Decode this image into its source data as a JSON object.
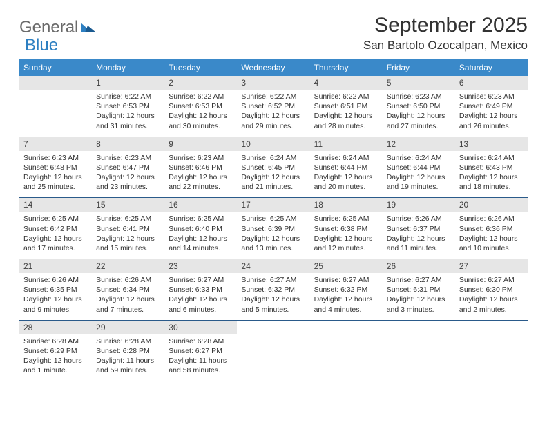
{
  "logo": {
    "part1": "General",
    "part2": "Blue"
  },
  "title": "September 2025",
  "location": "San Bartolo Ozocalpan, Mexico",
  "colors": {
    "header_bg": "#3a89c9",
    "header_text": "#ffffff",
    "daynum_bg": "#e6e6e6",
    "border": "#2a5a8a",
    "logo_gray": "#6a6a6a",
    "logo_blue": "#2d7fc1"
  },
  "weekdays": [
    "Sunday",
    "Monday",
    "Tuesday",
    "Wednesday",
    "Thursday",
    "Friday",
    "Saturday"
  ],
  "weeks": [
    [
      null,
      {
        "n": "1",
        "sr": "6:22 AM",
        "ss": "6:53 PM",
        "dl": "12 hours and 31 minutes."
      },
      {
        "n": "2",
        "sr": "6:22 AM",
        "ss": "6:53 PM",
        "dl": "12 hours and 30 minutes."
      },
      {
        "n": "3",
        "sr": "6:22 AM",
        "ss": "6:52 PM",
        "dl": "12 hours and 29 minutes."
      },
      {
        "n": "4",
        "sr": "6:22 AM",
        "ss": "6:51 PM",
        "dl": "12 hours and 28 minutes."
      },
      {
        "n": "5",
        "sr": "6:23 AM",
        "ss": "6:50 PM",
        "dl": "12 hours and 27 minutes."
      },
      {
        "n": "6",
        "sr": "6:23 AM",
        "ss": "6:49 PM",
        "dl": "12 hours and 26 minutes."
      }
    ],
    [
      {
        "n": "7",
        "sr": "6:23 AM",
        "ss": "6:48 PM",
        "dl": "12 hours and 25 minutes."
      },
      {
        "n": "8",
        "sr": "6:23 AM",
        "ss": "6:47 PM",
        "dl": "12 hours and 23 minutes."
      },
      {
        "n": "9",
        "sr": "6:23 AM",
        "ss": "6:46 PM",
        "dl": "12 hours and 22 minutes."
      },
      {
        "n": "10",
        "sr": "6:24 AM",
        "ss": "6:45 PM",
        "dl": "12 hours and 21 minutes."
      },
      {
        "n": "11",
        "sr": "6:24 AM",
        "ss": "6:44 PM",
        "dl": "12 hours and 20 minutes."
      },
      {
        "n": "12",
        "sr": "6:24 AM",
        "ss": "6:44 PM",
        "dl": "12 hours and 19 minutes."
      },
      {
        "n": "13",
        "sr": "6:24 AM",
        "ss": "6:43 PM",
        "dl": "12 hours and 18 minutes."
      }
    ],
    [
      {
        "n": "14",
        "sr": "6:25 AM",
        "ss": "6:42 PM",
        "dl": "12 hours and 17 minutes."
      },
      {
        "n": "15",
        "sr": "6:25 AM",
        "ss": "6:41 PM",
        "dl": "12 hours and 15 minutes."
      },
      {
        "n": "16",
        "sr": "6:25 AM",
        "ss": "6:40 PM",
        "dl": "12 hours and 14 minutes."
      },
      {
        "n": "17",
        "sr": "6:25 AM",
        "ss": "6:39 PM",
        "dl": "12 hours and 13 minutes."
      },
      {
        "n": "18",
        "sr": "6:25 AM",
        "ss": "6:38 PM",
        "dl": "12 hours and 12 minutes."
      },
      {
        "n": "19",
        "sr": "6:26 AM",
        "ss": "6:37 PM",
        "dl": "12 hours and 11 minutes."
      },
      {
        "n": "20",
        "sr": "6:26 AM",
        "ss": "6:36 PM",
        "dl": "12 hours and 10 minutes."
      }
    ],
    [
      {
        "n": "21",
        "sr": "6:26 AM",
        "ss": "6:35 PM",
        "dl": "12 hours and 9 minutes."
      },
      {
        "n": "22",
        "sr": "6:26 AM",
        "ss": "6:34 PM",
        "dl": "12 hours and 7 minutes."
      },
      {
        "n": "23",
        "sr": "6:27 AM",
        "ss": "6:33 PM",
        "dl": "12 hours and 6 minutes."
      },
      {
        "n": "24",
        "sr": "6:27 AM",
        "ss": "6:32 PM",
        "dl": "12 hours and 5 minutes."
      },
      {
        "n": "25",
        "sr": "6:27 AM",
        "ss": "6:32 PM",
        "dl": "12 hours and 4 minutes."
      },
      {
        "n": "26",
        "sr": "6:27 AM",
        "ss": "6:31 PM",
        "dl": "12 hours and 3 minutes."
      },
      {
        "n": "27",
        "sr": "6:27 AM",
        "ss": "6:30 PM",
        "dl": "12 hours and 2 minutes."
      }
    ],
    [
      {
        "n": "28",
        "sr": "6:28 AM",
        "ss": "6:29 PM",
        "dl": "12 hours and 1 minute."
      },
      {
        "n": "29",
        "sr": "6:28 AM",
        "ss": "6:28 PM",
        "dl": "11 hours and 59 minutes."
      },
      {
        "n": "30",
        "sr": "6:28 AM",
        "ss": "6:27 PM",
        "dl": "11 hours and 58 minutes."
      },
      null,
      null,
      null,
      null
    ]
  ],
  "labels": {
    "sunrise": "Sunrise: ",
    "sunset": "Sunset: ",
    "daylight": "Daylight: "
  }
}
